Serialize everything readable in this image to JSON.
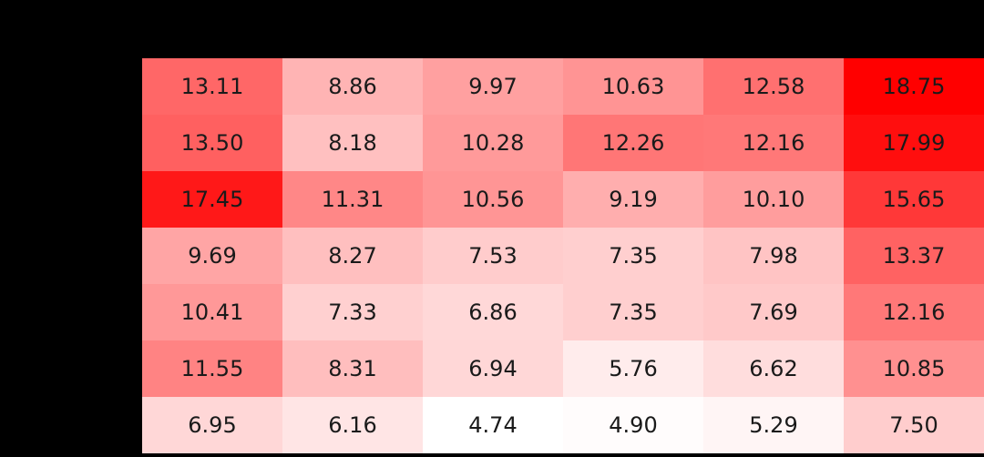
{
  "chart_data": {
    "type": "heatmap",
    "title": "",
    "xlabel": "",
    "ylabel": "",
    "colormap": "white-to-red",
    "color_low": "#ffffff",
    "color_high": "#ff0000",
    "background": "#000000",
    "values": [
      [
        13.11,
        8.86,
        9.97,
        10.63,
        12.58,
        18.75
      ],
      [
        13.5,
        8.18,
        10.28,
        12.26,
        12.16,
        17.99
      ],
      [
        17.45,
        11.31,
        10.56,
        9.19,
        10.1,
        15.65
      ],
      [
        9.69,
        8.27,
        7.53,
        7.35,
        7.98,
        13.37
      ],
      [
        10.41,
        7.33,
        6.86,
        7.35,
        7.69,
        12.16
      ],
      [
        11.55,
        8.31,
        6.94,
        5.76,
        6.62,
        10.85
      ],
      [
        6.95,
        6.16,
        4.74,
        4.9,
        5.29,
        7.5
      ]
    ],
    "labels": [
      [
        "13.11",
        "8.86",
        "9.97",
        "10.63",
        "12.58",
        "18.75"
      ],
      [
        "13.50",
        "8.18",
        "10.28",
        "12.26",
        "12.16",
        "17.99"
      ],
      [
        "17.45",
        "11.31",
        "10.56",
        "9.19",
        "10.10",
        "15.65"
      ],
      [
        "9.69",
        "8.27",
        "7.53",
        "7.35",
        "7.98",
        "13.37"
      ],
      [
        "10.41",
        "7.33",
        "6.86",
        "7.35",
        "7.69",
        "12.16"
      ],
      [
        "11.55",
        "8.31",
        "6.94",
        "5.76",
        "6.62",
        "10.85"
      ],
      [
        "6.95",
        "6.16",
        "4.74",
        "4.90",
        "5.29",
        "7.50"
      ]
    ],
    "vmin": 4.74,
    "vmax": 18.75
  }
}
